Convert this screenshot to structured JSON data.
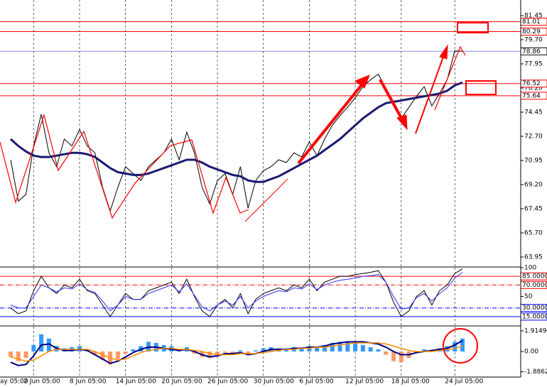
{
  "chart_data": [
    {
      "type": "line",
      "ylim": [
        63.28,
        82.58
      ],
      "yticks": [
        81.45,
        {
          "value": 79.7,
          "label": "79.70"
        },
        77.95,
        {
          "value": 76.2,
          "label": "76.20"
        },
        74.45,
        {
          "value": 72.7,
          "label": "72.70"
        },
        70.95,
        {
          "value": 69.2,
          "label": "69.20"
        },
        67.45,
        {
          "value": 65.7,
          "label": "65.70"
        },
        63.95
      ],
      "levels": [
        {
          "value": 81.01,
          "color": "#ff0000",
          "text_color": "#ff0000"
        },
        {
          "value": 80.29,
          "color": "#ff0000",
          "text_color": "#ff0000"
        },
        {
          "value": 78.86,
          "color": "#8090e0",
          "text_color": "#000000"
        },
        {
          "value": 76.52,
          "color": "#ff0000",
          "text_color": "#ff0000"
        },
        {
          "value": 75.64,
          "color": "#ff0000",
          "text_color": "#ff0000"
        }
      ],
      "series": [
        {
          "color": "#000000",
          "width": 1,
          "values": [
            71.0,
            68.0,
            68.5,
            72.0,
            74.3,
            71.5,
            70.5,
            72.5,
            72.0,
            73.2,
            72.0,
            71.5,
            69.0,
            67.3,
            69.0,
            70.5,
            70.0,
            69.5,
            70.5,
            71.0,
            71.5,
            72.5,
            71.0,
            73.0,
            71.5,
            69.0,
            67.8,
            69.5,
            70.0,
            68.5,
            70.5,
            67.5,
            69.5,
            70.2,
            70.5,
            71.0,
            70.8,
            71.5,
            71.2,
            72.3,
            71.3,
            72.5,
            73.5,
            74.2,
            74.8,
            75.5,
            76.3,
            76.8,
            77.2,
            76.2,
            75.2,
            74.0,
            74.8,
            75.6,
            76.3,
            74.9,
            75.8,
            76.8,
            78.9,
            78.86
          ]
        },
        {
          "color": "#1a1a70",
          "width": 3,
          "values": [
            72.5,
            72.0,
            71.6,
            71.3,
            71.2,
            71.2,
            71.3,
            71.4,
            71.5,
            71.5,
            71.4,
            71.2,
            70.8,
            70.4,
            70.1,
            70.0,
            69.9,
            69.9,
            70.0,
            70.2,
            70.4,
            70.6,
            70.8,
            71.0,
            71.0,
            70.8,
            70.5,
            70.3,
            70.1,
            69.9,
            69.8,
            69.5,
            69.4,
            69.4,
            69.6,
            69.8,
            70.1,
            70.4,
            70.7,
            71.0,
            71.3,
            71.7,
            72.1,
            72.5,
            73.0,
            73.5,
            74.0,
            74.4,
            74.8,
            75.1,
            75.2,
            75.3,
            75.4,
            75.5,
            75.6,
            75.7,
            75.8,
            76.0,
            76.4,
            76.6
          ]
        }
      ]
    },
    {
      "type": "line",
      "ylim": [
        0,
        100
      ],
      "yticks": [
        100,
        50
      ],
      "levels": [
        {
          "value": 85,
          "label": "85.0000",
          "color": "#ff0000"
        },
        {
          "value": 70,
          "label": "70.0000",
          "color": "#ff0000"
        },
        {
          "value": 30,
          "label": "30.0000",
          "color": "#0000ff"
        },
        {
          "value": 15,
          "label": "15.0000",
          "color": "#0000ff"
        }
      ],
      "series": [
        {
          "color": "#000000",
          "width": 1,
          "values": [
            30,
            20,
            25,
            60,
            85,
            65,
            55,
            70,
            65,
            80,
            60,
            55,
            35,
            15,
            35,
            55,
            45,
            45,
            60,
            65,
            70,
            75,
            55,
            80,
            50,
            25,
            15,
            35,
            45,
            30,
            55,
            20,
            45,
            55,
            60,
            65,
            60,
            70,
            65,
            80,
            60,
            75,
            80,
            85,
            85,
            88,
            90,
            92,
            95,
            75,
            40,
            15,
            25,
            50,
            60,
            35,
            60,
            70,
            90,
            98
          ]
        },
        {
          "color": "#3030ff",
          "width": 1,
          "values": [
            35,
            30,
            30,
            50,
            70,
            65,
            58,
            65,
            63,
            72,
            62,
            57,
            42,
            25,
            35,
            50,
            45,
            45,
            55,
            60,
            65,
            70,
            58,
            72,
            52,
            32,
            25,
            35,
            42,
            35,
            50,
            30,
            42,
            50,
            55,
            60,
            58,
            65,
            63,
            72,
            62,
            70,
            75,
            78,
            80,
            82,
            85,
            86,
            88,
            75,
            50,
            28,
            30,
            48,
            55,
            42,
            55,
            65,
            82,
            92
          ]
        }
      ]
    },
    {
      "type": "bar",
      "ylim": [
        -2.31,
        2.31
      ],
      "yticks": [
        1.9149,
        {
          "value": 0,
          "label": "0.00"
        },
        -1.8862
      ],
      "categories": [
        "ay 05:00",
        null,
        null,
        "2 Jun 05:00",
        null,
        null,
        null,
        null,
        null,
        "8 Jun 05:00",
        null,
        null,
        null,
        null,
        null,
        "14 Jun 05:00",
        null,
        null,
        null,
        null,
        null,
        "20 Jun 05:00",
        null,
        null,
        null,
        null,
        null,
        "26 Jun 05:00",
        null,
        null,
        null,
        null,
        null,
        "30 Jun 05:00",
        null,
        null,
        null,
        null,
        null,
        "6 Jul 05:00",
        null,
        null,
        null,
        null,
        null,
        "12 Jul 05:00",
        null,
        null,
        null,
        null,
        null,
        "18 Jul 05:00",
        null,
        null,
        null,
        null,
        null,
        null,
        "24 Jul 05:00",
        null
      ],
      "values": [
        -0.5,
        -0.9,
        -0.6,
        0.6,
        1.6,
        1.2,
        0.5,
        0.3,
        0.4,
        0.5,
        0.2,
        -0.3,
        -0.8,
        -1.2,
        -0.7,
        -0.2,
        0.2,
        0.5,
        0.9,
        0.8,
        0.6,
        0.5,
        0.2,
        0.4,
        -0.2,
        -0.5,
        -0.6,
        -0.4,
        -0.1,
        -0.2,
        0.1,
        -0.3,
        0.1,
        0.3,
        0.4,
        0.3,
        0.3,
        0.4,
        0.4,
        0.5,
        0.4,
        0.6,
        0.8,
        0.9,
        0.9,
        0.8,
        0.6,
        0.4,
        0.2,
        -0.3,
        -0.9,
        -1.0,
        -0.6,
        -0.1,
        0.2,
        0.1,
        0.3,
        0.5,
        0.9,
        1.2
      ],
      "color": "#3399ff",
      "negative_color": "#ff9966",
      "series": [
        {
          "color": "#000080",
          "width": 2,
          "values": [
            -1.0,
            -1.3,
            -1.2,
            -0.4,
            0.6,
            0.7,
            0.3,
            0.1,
            0.1,
            0.2,
            0.1,
            -0.3,
            -0.7,
            -1.1,
            -0.9,
            -0.5,
            -0.1,
            0.2,
            0.4,
            0.4,
            0.3,
            0.2,
            0.1,
            0.2,
            0.0,
            -0.3,
            -0.5,
            -0.4,
            -0.2,
            -0.2,
            -0.1,
            -0.3,
            -0.2,
            0.0,
            0.2,
            0.2,
            0.2,
            0.3,
            0.3,
            0.4,
            0.4,
            0.5,
            0.7,
            0.8,
            0.9,
            0.9,
            0.9,
            0.8,
            0.7,
            0.4,
            0.0,
            -0.3,
            -0.3,
            -0.1,
            0.0,
            0.1,
            0.2,
            0.3,
            0.6,
            1.0
          ]
        },
        {
          "color": "#ff8c00",
          "width": 1.5,
          "values": [
            -0.5,
            -0.7,
            -0.9,
            -0.8,
            -0.4,
            0.0,
            0.2,
            0.2,
            0.2,
            0.2,
            0.2,
            0.0,
            -0.3,
            -0.6,
            -0.8,
            -0.7,
            -0.4,
            -0.1,
            0.1,
            0.2,
            0.3,
            0.3,
            0.2,
            0.2,
            0.1,
            0.0,
            -0.2,
            -0.3,
            -0.3,
            -0.3,
            -0.2,
            -0.2,
            -0.2,
            -0.1,
            0.0,
            0.1,
            0.2,
            0.2,
            0.3,
            0.3,
            0.4,
            0.4,
            0.5,
            0.6,
            0.7,
            0.8,
            0.8,
            0.8,
            0.8,
            0.7,
            0.5,
            0.3,
            0.1,
            0.0,
            0.0,
            0.0,
            0.1,
            0.2,
            0.3,
            0.5
          ]
        }
      ]
    }
  ]
}
